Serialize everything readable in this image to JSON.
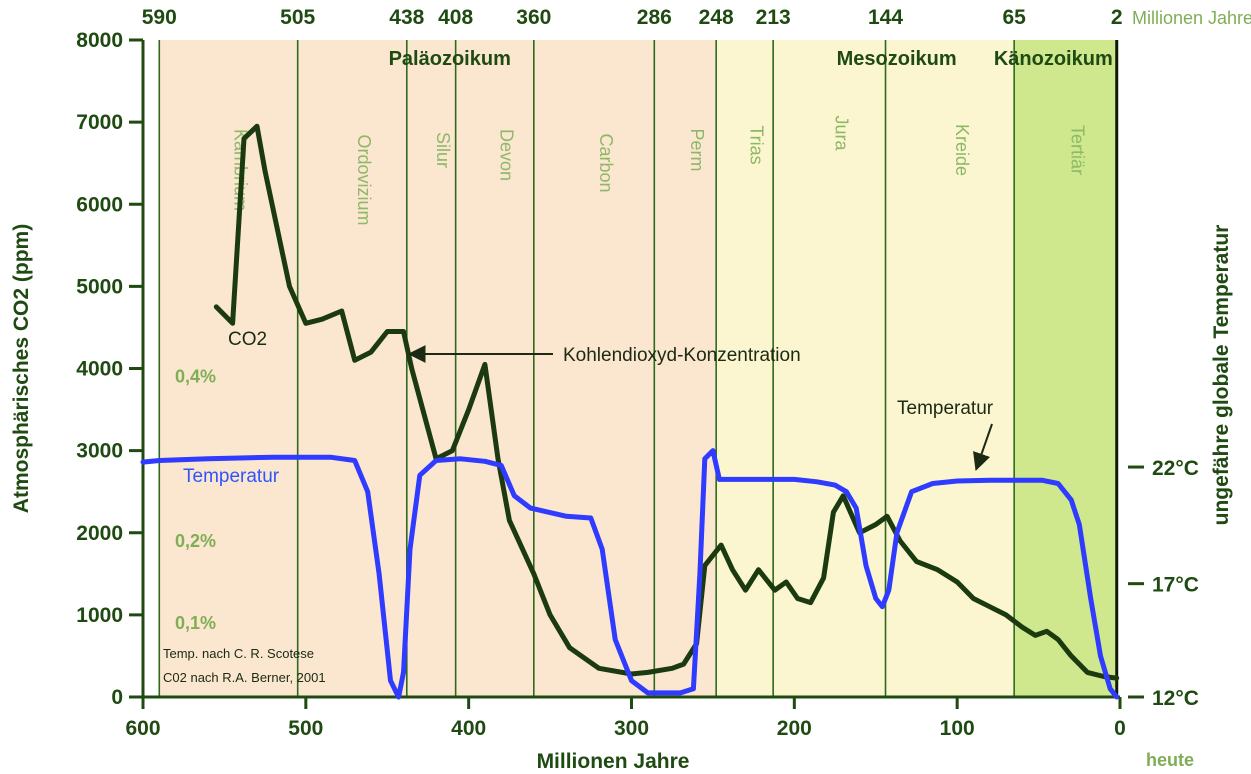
{
  "chart_data": {
    "type": "line",
    "xlabel": "Millionen Jahre",
    "x_now_label": "heute",
    "ylabel": "Atmosphärisches CO2 (ppm)",
    "y2label": "ungefähre globale Temperatur",
    "xlim": [
      600,
      0
    ],
    "ylim": [
      0,
      8000
    ],
    "x_ticks": [
      "600",
      "500",
      "400",
      "300",
      "200",
      "100",
      "0"
    ],
    "y_ticks": [
      "0",
      "1000",
      "2000",
      "3000",
      "4000",
      "5000",
      "6000",
      "7000",
      "8000"
    ],
    "top_axis_unit": "Millionen Jahre",
    "top_ticks": [
      {
        "value": 590,
        "label": "590"
      },
      {
        "value": 505,
        "label": "505"
      },
      {
        "value": 438,
        "label": "438"
      },
      {
        "value": 408,
        "label": "408"
      },
      {
        "value": 360,
        "label": "360"
      },
      {
        "value": 286,
        "label": "286"
      },
      {
        "value": 248,
        "label": "248"
      },
      {
        "value": 213,
        "label": "213"
      },
      {
        "value": 144,
        "label": "144"
      },
      {
        "value": 65,
        "label": "65"
      },
      {
        "value": 2,
        "label": "2"
      }
    ],
    "temperature_ticks": [
      {
        "label": "12°C",
        "co2_equiv": 0
      },
      {
        "label": "17°C",
        "co2_equiv": 1380
      },
      {
        "label": "22°C",
        "co2_equiv": 2800
      }
    ],
    "percent_labels": [
      {
        "label": "0,4%",
        "y": 4000
      },
      {
        "label": "0,2%",
        "y": 2000
      },
      {
        "label": "0,1%",
        "y": 1000
      }
    ],
    "eras": [
      {
        "name": "Paläozoikum",
        "start": 590,
        "end": 248,
        "color": "#fbe6d0"
      },
      {
        "name": "Mesozoikum",
        "start": 248,
        "end": 65,
        "color": "#fbf6cf"
      },
      {
        "name": "Känozoikum",
        "start": 65,
        "end": 2,
        "color": "#cfe88d"
      }
    ],
    "periods": [
      {
        "name": "Kambrium",
        "start": 590,
        "end": 505
      },
      {
        "name": "Ordovizium",
        "start": 505,
        "end": 438
      },
      {
        "name": "Silur",
        "start": 438,
        "end": 408
      },
      {
        "name": "Devon",
        "start": 408,
        "end": 360
      },
      {
        "name": "Carbon",
        "start": 360,
        "end": 286
      },
      {
        "name": "Perm",
        "start": 286,
        "end": 248
      },
      {
        "name": "Trias",
        "start": 248,
        "end": 213
      },
      {
        "name": "Jura",
        "start": 213,
        "end": 144
      },
      {
        "name": "Kreide",
        "start": 144,
        "end": 65
      },
      {
        "name": "Tertiär",
        "start": 65,
        "end": 2
      }
    ],
    "series": [
      {
        "name": "CO2",
        "color": "#1c3a10",
        "x": [
          555,
          545,
          538,
          530,
          525,
          510,
          500,
          490,
          478,
          470,
          460,
          450,
          440,
          435,
          420,
          410,
          400,
          390,
          382,
          375,
          360,
          350,
          338,
          320,
          300,
          290,
          275,
          268,
          260,
          255,
          245,
          238,
          230,
          222,
          212,
          205,
          198,
          190,
          182,
          176,
          170,
          160,
          150,
          143,
          135,
          125,
          112,
          100,
          90,
          80,
          70,
          60,
          52,
          45,
          38,
          30,
          20,
          10,
          2
        ],
        "y": [
          4750,
          4550,
          6800,
          6950,
          6400,
          5000,
          4550,
          4600,
          4700,
          4100,
          4200,
          4450,
          4450,
          4000,
          2900,
          3000,
          3500,
          4050,
          2900,
          2150,
          1500,
          1000,
          600,
          350,
          280,
          300,
          350,
          400,
          650,
          1600,
          1850,
          1550,
          1300,
          1550,
          1300,
          1400,
          1200,
          1150,
          1450,
          2250,
          2450,
          2000,
          2100,
          2200,
          1900,
          1650,
          1550,
          1400,
          1200,
          1100,
          1000,
          850,
          750,
          800,
          700,
          500,
          300,
          250,
          230
        ]
      },
      {
        "name": "Temperatur",
        "color": "#2f3bff",
        "x": [
          600,
          590,
          560,
          520,
          485,
          470,
          462,
          455,
          448,
          443,
          440,
          436,
          430,
          420,
          405,
          390,
          380,
          372,
          362,
          340,
          325,
          318,
          310,
          300,
          290,
          270,
          262,
          258,
          255,
          250,
          246,
          240,
          220,
          200,
          186,
          175,
          168,
          162,
          156,
          150,
          146,
          142,
          137,
          128,
          115,
          100,
          80,
          60,
          48,
          38,
          30,
          25,
          18,
          12,
          6,
          2
        ],
        "y": [
          2860,
          2880,
          2900,
          2920,
          2920,
          2880,
          2500,
          1500,
          200,
          0,
          300,
          1800,
          2700,
          2880,
          2900,
          2870,
          2820,
          2450,
          2300,
          2200,
          2180,
          1800,
          700,
          200,
          50,
          50,
          100,
          1500,
          2900,
          3000,
          2650,
          2650,
          2650,
          2650,
          2620,
          2580,
          2500,
          2300,
          1600,
          1200,
          1100,
          1300,
          2000,
          2500,
          2600,
          2630,
          2640,
          2640,
          2640,
          2600,
          2400,
          2100,
          1200,
          500,
          100,
          0
        ]
      }
    ],
    "annotations": [
      {
        "text": "CO2",
        "series": "CO2"
      },
      {
        "text": "Kohlendioxyd-Konzentration",
        "arrow_to": [
          440,
          4150
        ]
      },
      {
        "text": "Temperatur",
        "series": "Temperatur"
      },
      {
        "text": "Temperatur",
        "arrow_to": [
          92,
          2700
        ]
      }
    ],
    "credits": [
      "Temp. nach C. R. Scotese",
      "C02 nach R.A. Berner, 2001"
    ],
    "grid": false
  }
}
